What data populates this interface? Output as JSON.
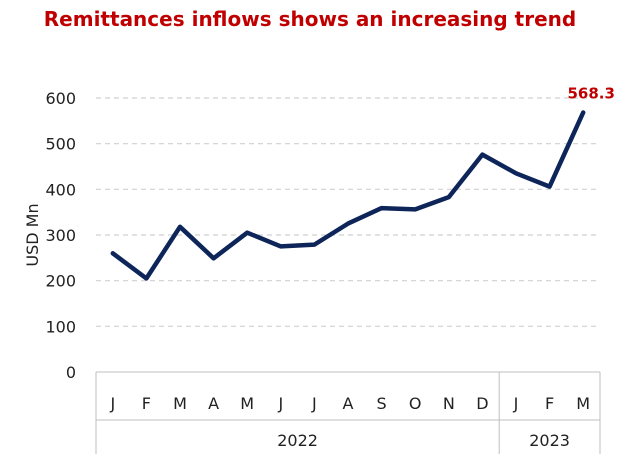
{
  "chart_data": {
    "type": "line",
    "title": "Remittances inflows shows an increasing trend",
    "ylabel": "USD Mn",
    "xlabel": "",
    "ylim": [
      0,
      600
    ],
    "yticks": [
      0,
      100,
      200,
      300,
      400,
      500,
      600
    ],
    "grid": "horizontal dashed",
    "categories": [
      "J",
      "F",
      "M",
      "A",
      "M",
      "J",
      "J",
      "A",
      "S",
      "O",
      "N",
      "D",
      "J",
      "F",
      "M"
    ],
    "groups": [
      {
        "label": "2022",
        "count": 12
      },
      {
        "label": "2023",
        "count": 3
      }
    ],
    "series": [
      {
        "values": [
          260,
          205,
          318,
          249,
          305,
          275,
          279,
          325,
          359,
          356,
          383,
          476,
          435,
          406,
          568.3
        ],
        "color": "#0d2559"
      }
    ],
    "annotations": [
      {
        "index": 14,
        "text": "568.3",
        "color": "#c00000"
      }
    ]
  }
}
